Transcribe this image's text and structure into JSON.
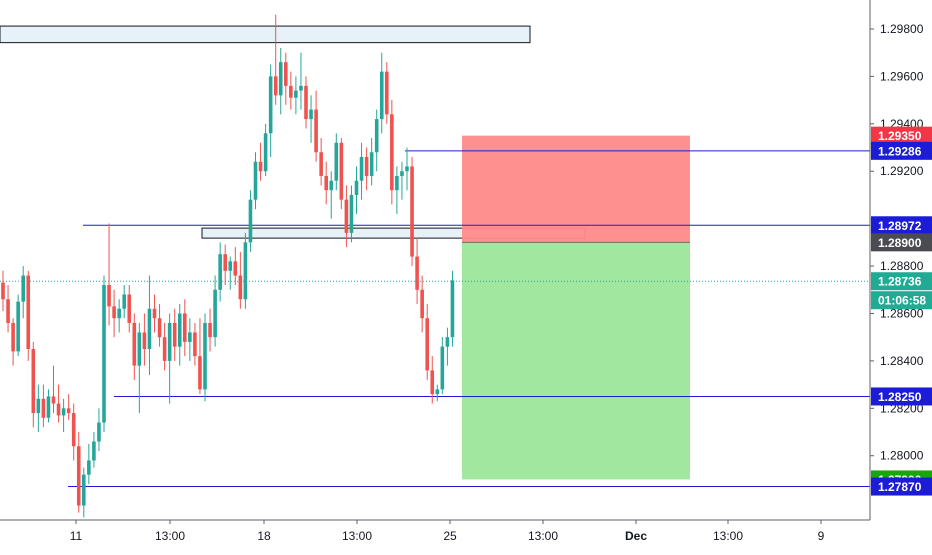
{
  "colors": {
    "background": "#ffffff",
    "up": "#26a69a",
    "down": "#ef5350",
    "axis_line": "#5d606b",
    "axis_text": "#131722",
    "level_line": "#1c1cd6",
    "zone_fill": "#ddecf6",
    "zone_border": "#131722",
    "stop_fill": "#ff8a8a",
    "target_fill": "#9de69a",
    "label_blue": "#1c1cd6",
    "label_red": "#f23645",
    "label_gray": "#4b4b52",
    "label_green": "#22ab94",
    "label_bright_green": "#16a70f",
    "last_price_line": "#26a69a"
  },
  "chart_data": {
    "type": "candlestick",
    "price_axis": {
      "ticks": [
        "1.29800",
        "1.29600",
        "1.29400",
        "1.29200",
        "1.28800",
        "1.28600",
        "1.28400",
        "1.28200",
        "1.28000"
      ],
      "ylim": [
        1.2775,
        1.2988
      ]
    },
    "time_axis": {
      "ticks": [
        "11",
        "13:00",
        "18",
        "13:00",
        "25",
        "13:00",
        "Dec",
        "13:00",
        "9"
      ]
    },
    "horizontal_levels": [
      1.29286,
      1.28972,
      1.2825,
      1.2787
    ],
    "zones": [
      {
        "top": 1.2977,
        "bottom": 1.29755
      },
      {
        "top": 1.2896,
        "bottom": 1.2892
      }
    ],
    "position": {
      "type": "short",
      "stop_loss": 1.2935,
      "entry": 1.289,
      "take_profit": 1.279
    },
    "price_labels": [
      {
        "text": "1.29350",
        "value": 1.2935,
        "role": "stop"
      },
      {
        "text": "1.29286",
        "value": 1.29286,
        "role": "level"
      },
      {
        "text": "1.28972",
        "value": 1.28972,
        "role": "level"
      },
      {
        "text": "1.28900",
        "value": 1.289,
        "role": "entry"
      },
      {
        "text": "1.28736",
        "value": 1.28736,
        "role": "last"
      },
      {
        "text": "01:06:58",
        "value": 1.28702,
        "role": "countdown"
      },
      {
        "text": "1.28250",
        "value": 1.2825,
        "role": "level"
      },
      {
        "text": "1.27900",
        "value": 1.279,
        "role": "target"
      },
      {
        "text": "1.27870",
        "value": 1.2787,
        "role": "level"
      }
    ],
    "last_price": 1.28736,
    "candles": [
      [
        1.2873,
        1.2878,
        1.2861,
        1.2866
      ],
      [
        1.2866,
        1.2872,
        1.2852,
        1.2856
      ],
      [
        1.2856,
        1.2858,
        1.2838,
        1.2844
      ],
      [
        1.2844,
        1.2868,
        1.2842,
        1.2865
      ],
      [
        1.2865,
        1.288,
        1.2858,
        1.2876
      ],
      [
        1.2876,
        1.2878,
        1.284,
        1.2845
      ],
      [
        1.2845,
        1.2848,
        1.2812,
        1.2818
      ],
      [
        1.2818,
        1.283,
        1.281,
        1.2824
      ],
      [
        1.2824,
        1.283,
        1.2812,
        1.2816
      ],
      [
        1.2816,
        1.2828,
        1.2814,
        1.2825
      ],
      [
        1.2825,
        1.2838,
        1.2818,
        1.2822
      ],
      [
        1.2822,
        1.283,
        1.2814,
        1.2817
      ],
      [
        1.2817,
        1.2824,
        1.281,
        1.282
      ],
      [
        1.282,
        1.2826,
        1.2815,
        1.2818
      ],
      [
        1.2818,
        1.2822,
        1.2798,
        1.2804
      ],
      [
        1.2804,
        1.281,
        1.2776,
        1.2779
      ],
      [
        1.2779,
        1.2795,
        1.2774,
        1.2792
      ],
      [
        1.2792,
        1.2805,
        1.2788,
        1.2798
      ],
      [
        1.2798,
        1.281,
        1.2795,
        1.2806
      ],
      [
        1.2806,
        1.282,
        1.2802,
        1.2814
      ],
      [
        1.2814,
        1.2876,
        1.281,
        1.2872
      ],
      [
        1.2872,
        1.2898,
        1.2855,
        1.2863
      ],
      [
        1.2863,
        1.287,
        1.285,
        1.2858
      ],
      [
        1.2858,
        1.2866,
        1.2852,
        1.2862
      ],
      [
        1.2862,
        1.2872,
        1.2858,
        1.2868
      ],
      [
        1.2868,
        1.2872,
        1.2852,
        1.2856
      ],
      [
        1.2856,
        1.286,
        1.2832,
        1.2838
      ],
      [
        1.2838,
        1.2856,
        1.2818,
        1.2852
      ],
      [
        1.2852,
        1.286,
        1.2838,
        1.2845
      ],
      [
        1.2845,
        1.2876,
        1.2834,
        1.2862
      ],
      [
        1.2862,
        1.2868,
        1.2852,
        1.2858
      ],
      [
        1.2858,
        1.2864,
        1.2846,
        1.285
      ],
      [
        1.285,
        1.2856,
        1.2836,
        1.284
      ],
      [
        1.284,
        1.286,
        1.2822,
        1.2856
      ],
      [
        1.2856,
        1.2862,
        1.284,
        1.2846
      ],
      [
        1.2846,
        1.2864,
        1.2838,
        1.286
      ],
      [
        1.286,
        1.2866,
        1.2842,
        1.2848
      ],
      [
        1.2848,
        1.2858,
        1.284,
        1.2852
      ],
      [
        1.2852,
        1.2856,
        1.2838,
        1.2842
      ],
      [
        1.2842,
        1.2858,
        1.2826,
        1.2828
      ],
      [
        1.2828,
        1.286,
        1.2823,
        1.2856
      ],
      [
        1.2856,
        1.2862,
        1.2844,
        1.285
      ],
      [
        1.285,
        1.2876,
        1.2846,
        1.287
      ],
      [
        1.287,
        1.289,
        1.2865,
        1.2885
      ],
      [
        1.2885,
        1.2889,
        1.2872,
        1.2878
      ],
      [
        1.2878,
        1.2884,
        1.287,
        1.2882
      ],
      [
        1.2882,
        1.2888,
        1.2872,
        1.2876
      ],
      [
        1.2876,
        1.2886,
        1.2862,
        1.2866
      ],
      [
        1.2866,
        1.2894,
        1.2862,
        1.289
      ],
      [
        1.289,
        1.2912,
        1.2886,
        1.2908
      ],
      [
        1.2908,
        1.2928,
        1.2904,
        1.2924
      ],
      [
        1.2924,
        1.2932,
        1.2916,
        1.292
      ],
      [
        1.292,
        1.294,
        1.2918,
        1.2936
      ],
      [
        1.2936,
        1.2965,
        1.2926,
        1.296
      ],
      [
        1.296,
        1.2986,
        1.2948,
        1.2952
      ],
      [
        1.2952,
        1.2972,
        1.2944,
        1.2966
      ],
      [
        1.2966,
        1.297,
        1.2948,
        1.2956
      ],
      [
        1.2956,
        1.2962,
        1.2946,
        1.2951
      ],
      [
        1.2951,
        1.296,
        1.2944,
        1.2954
      ],
      [
        1.2954,
        1.297,
        1.2946,
        1.2956
      ],
      [
        1.2956,
        1.296,
        1.2938,
        1.2942
      ],
      [
        1.2942,
        1.2952,
        1.2932,
        1.2946
      ],
      [
        1.2946,
        1.2954,
        1.2924,
        1.2928
      ],
      [
        1.2928,
        1.2934,
        1.2914,
        1.2918
      ],
      [
        1.2918,
        1.2924,
        1.2906,
        1.2912
      ],
      [
        1.2912,
        1.292,
        1.29,
        1.2916
      ],
      [
        1.2916,
        1.2936,
        1.2912,
        1.2932
      ],
      [
        1.2932,
        1.2934,
        1.2904,
        1.2908
      ],
      [
        1.2908,
        1.2914,
        1.2888,
        1.2894
      ],
      [
        1.2894,
        1.2914,
        1.289,
        1.291
      ],
      [
        1.291,
        1.2922,
        1.2902,
        1.2916
      ],
      [
        1.2916,
        1.2932,
        1.2908,
        1.2926
      ],
      [
        1.2926,
        1.293,
        1.2912,
        1.2918
      ],
      [
        1.2918,
        1.2934,
        1.2914,
        1.2928
      ],
      [
        1.2928,
        1.2946,
        1.292,
        1.2942
      ],
      [
        1.2942,
        1.297,
        1.2936,
        1.2962
      ],
      [
        1.2962,
        1.2966,
        1.294,
        1.2944
      ],
      [
        1.2944,
        1.295,
        1.2906,
        1.2912
      ],
      [
        1.2912,
        1.2922,
        1.2902,
        1.2918
      ],
      [
        1.2918,
        1.2924,
        1.2908,
        1.292
      ],
      [
        1.292,
        1.293,
        1.2912,
        1.2922
      ],
      [
        1.2922,
        1.2926,
        1.288,
        1.2884
      ],
      [
        1.2884,
        1.2892,
        1.2864,
        1.287
      ],
      [
        1.287,
        1.2876,
        1.2852,
        1.2858
      ],
      [
        1.2858,
        1.2864,
        1.2832,
        1.2836
      ],
      [
        1.2836,
        1.2842,
        1.2822,
        1.2826
      ],
      [
        1.2826,
        1.283,
        1.2823,
        1.2828
      ],
      [
        1.2828,
        1.285,
        1.2826,
        1.2846
      ],
      [
        1.2846,
        1.2854,
        1.2838,
        1.285
      ],
      [
        1.285,
        1.2878,
        1.2846,
        1.2874
      ]
    ]
  }
}
